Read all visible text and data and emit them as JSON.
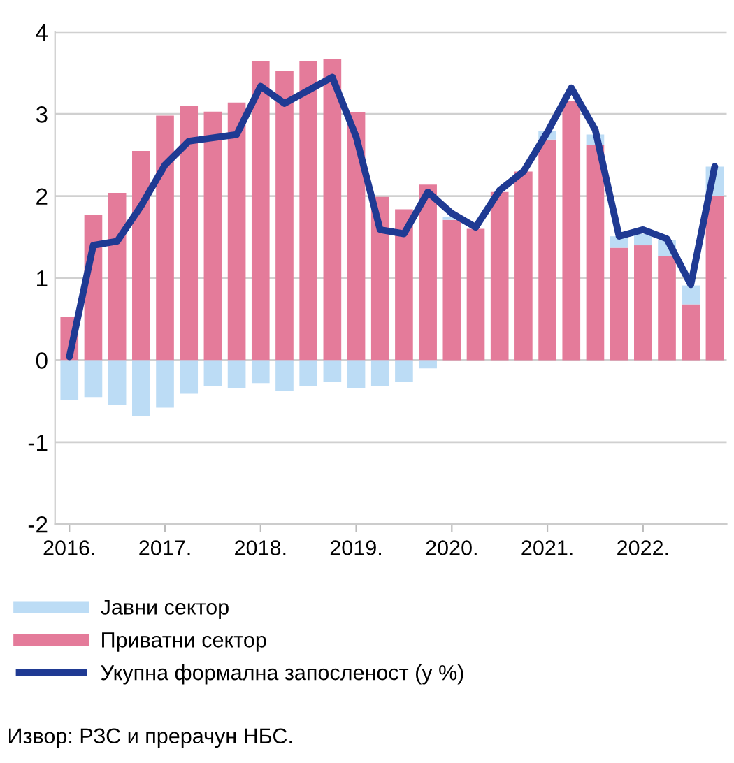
{
  "chart_data": {
    "type": "bar",
    "stacked": true,
    "categories": [
      "2016.",
      null,
      null,
      null,
      "2017.",
      null,
      null,
      null,
      "2018.",
      null,
      null,
      null,
      "2019.",
      null,
      null,
      null,
      "2020.",
      null,
      null,
      null,
      "2021.",
      null,
      null,
      null,
      "2022.",
      null,
      null,
      null
    ],
    "series": [
      {
        "name": "Приватни сектор",
        "color": "#e47b9a",
        "values": [
          0.53,
          1.77,
          2.04,
          2.55,
          2.98,
          3.1,
          3.03,
          3.14,
          3.64,
          3.53,
          3.64,
          3.67,
          3.02,
          1.99,
          1.84,
          2.14,
          1.71,
          1.6,
          2.05,
          2.3,
          2.69,
          3.16,
          2.62,
          1.37,
          1.4,
          1.27,
          0.68,
          2.0
        ]
      },
      {
        "name": "Јавни сектор",
        "color": "#bcdcf5",
        "values": [
          -0.49,
          -0.45,
          -0.55,
          -0.68,
          -0.58,
          -0.41,
          -0.32,
          -0.34,
          -0.28,
          -0.38,
          -0.32,
          -0.26,
          -0.34,
          -0.32,
          -0.27,
          -0.1,
          0.04,
          null,
          null,
          null,
          0.1,
          null,
          0.13,
          0.14,
          0.14,
          0.19,
          0.23,
          0.36
        ]
      },
      {
        "name": "Укупна формална запосленост (у %)",
        "type": "line",
        "color": "#1f3a93",
        "values": [
          0.04,
          1.4,
          1.45,
          1.88,
          2.38,
          2.67,
          2.71,
          2.75,
          3.34,
          3.13,
          3.29,
          3.45,
          2.72,
          1.59,
          1.54,
          2.05,
          1.79,
          1.62,
          2.07,
          2.3,
          2.78,
          3.32,
          2.81,
          1.51,
          1.59,
          1.48,
          0.92,
          2.36
        ]
      }
    ],
    "ylim": [
      -2,
      4
    ],
    "yticks": [
      -2,
      -1,
      0,
      1,
      2,
      3,
      4
    ],
    "grid": "y",
    "legend": "bottom left",
    "annotations": [
      "Извор: РЗС и прерачун НБС."
    ]
  }
}
